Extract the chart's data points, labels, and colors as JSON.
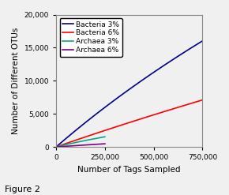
{
  "title": "",
  "xlabel": "Number of Tags Sampled",
  "ylabel": "Number of Different OTUs",
  "xlim": [
    0,
    750000
  ],
  "ylim": [
    0,
    20000
  ],
  "xticks": [
    0,
    250000,
    500000,
    750000
  ],
  "yticks": [
    0,
    5000,
    10000,
    15000,
    20000
  ],
  "figure2_label": "Figure 2",
  "series": [
    {
      "label": "Bacteria 3%",
      "color": "#00008B",
      "x_max": 750000,
      "a": 46000,
      "b": 1800000
    },
    {
      "label": "Bacteria 6%",
      "color": "#FF0000",
      "x_max": 750000,
      "a": 46000,
      "b": 4500000
    },
    {
      "label": "Archaea 3%",
      "color": "#00AA88",
      "x_max": 250000,
      "a": 5000,
      "b": 700000
    },
    {
      "label": "Archaea 6%",
      "color": "#800080",
      "x_max": 250000,
      "a": 4000,
      "b": 2000000
    }
  ],
  "background_color": "#f0f0f0",
  "legend_fontsize": 6.5,
  "axis_label_fontsize": 7.5,
  "tick_fontsize": 6.5
}
